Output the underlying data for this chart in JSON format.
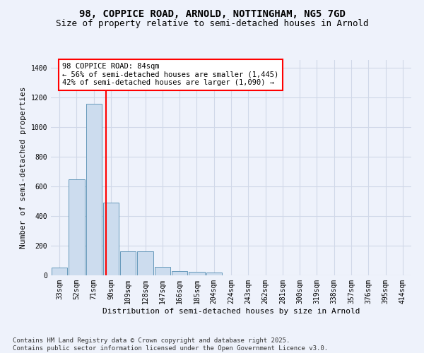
{
  "title_line1": "98, COPPICE ROAD, ARNOLD, NOTTINGHAM, NG5 7GD",
  "title_line2": "Size of property relative to semi-detached houses in Arnold",
  "xlabel": "Distribution of semi-detached houses by size in Arnold",
  "ylabel": "Number of semi-detached properties",
  "categories": [
    "33sqm",
    "52sqm",
    "71sqm",
    "90sqm",
    "109sqm",
    "128sqm",
    "147sqm",
    "166sqm",
    "185sqm",
    "204sqm",
    "224sqm",
    "243sqm",
    "262sqm",
    "281sqm",
    "300sqm",
    "319sqm",
    "338sqm",
    "357sqm",
    "376sqm",
    "395sqm",
    "414sqm"
  ],
  "values": [
    50,
    645,
    1155,
    490,
    160,
    160,
    55,
    30,
    25,
    20,
    0,
    0,
    0,
    0,
    0,
    0,
    0,
    0,
    0,
    0,
    0
  ],
  "bar_color": "#ccdcee",
  "bar_edge_color": "#6699bb",
  "red_line_x": 2.72,
  "annotation_text": "98 COPPICE ROAD: 84sqm\n← 56% of semi-detached houses are smaller (1,445)\n42% of semi-detached houses are larger (1,090) →",
  "annotation_box_color": "white",
  "annotation_box_edge_color": "red",
  "red_line_color": "red",
  "ylim": [
    0,
    1450
  ],
  "yticks": [
    0,
    200,
    400,
    600,
    800,
    1000,
    1200,
    1400
  ],
  "background_color": "#eef2fb",
  "grid_color": "#d0d8e8",
  "footer_line1": "Contains HM Land Registry data © Crown copyright and database right 2025.",
  "footer_line2": "Contains public sector information licensed under the Open Government Licence v3.0.",
  "title_fontsize": 10,
  "subtitle_fontsize": 9,
  "axis_label_fontsize": 8,
  "tick_fontsize": 7,
  "annotation_fontsize": 7.5,
  "footer_fontsize": 6.5
}
